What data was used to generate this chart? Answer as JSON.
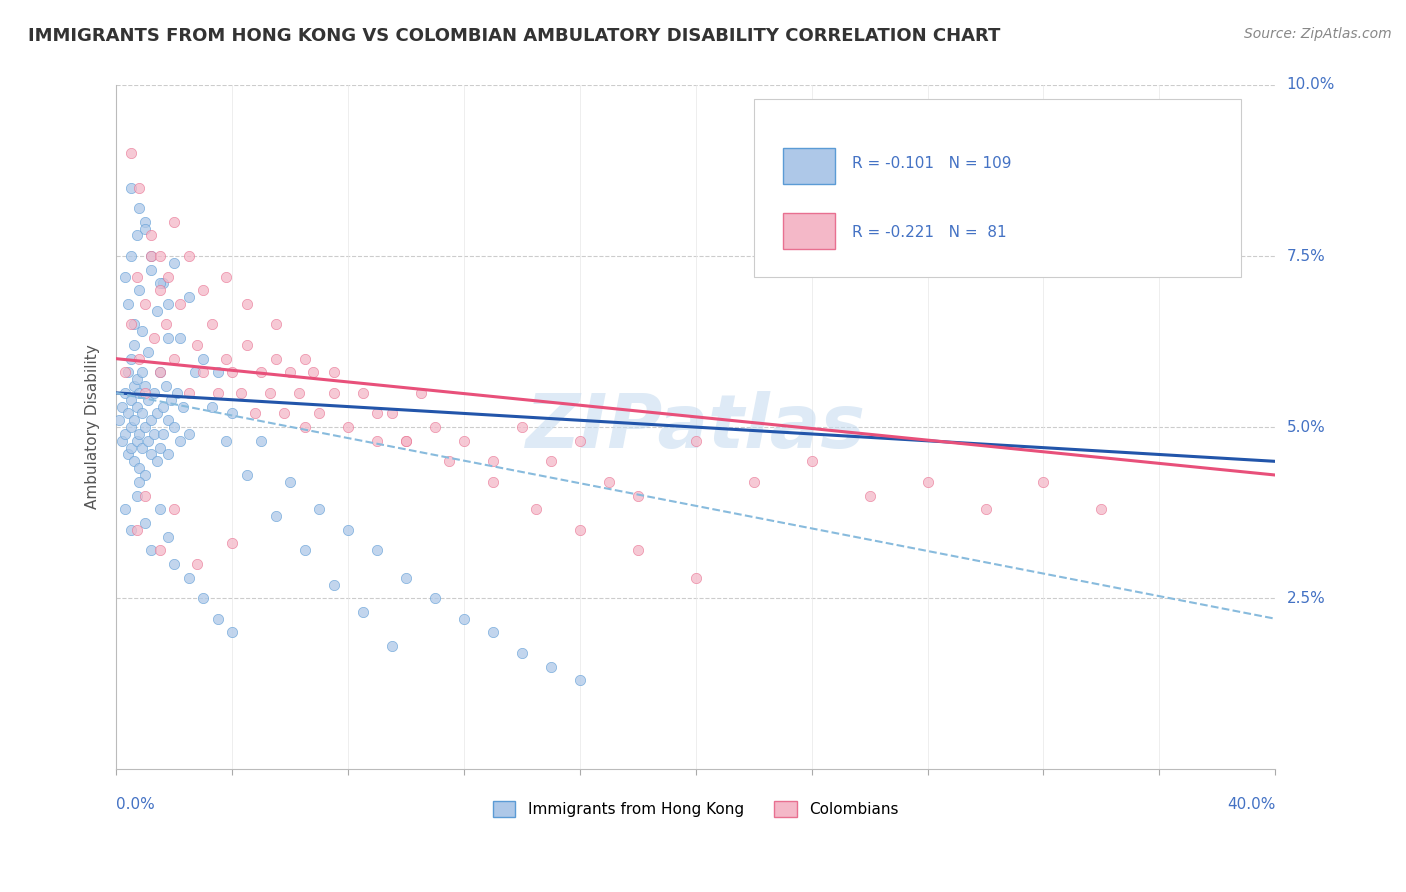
{
  "title": "IMMIGRANTS FROM HONG KONG VS COLOMBIAN AMBULATORY DISABILITY CORRELATION CHART",
  "source": "Source: ZipAtlas.com",
  "ylabel_label": "Ambulatory Disability",
  "xmin": 0.0,
  "xmax": 0.4,
  "ymin": 0.0,
  "ymax": 0.1,
  "color_blue": "#aec8e8",
  "color_blue_edge": "#5b9bd5",
  "color_pink": "#f4b8c8",
  "color_pink_edge": "#e87090",
  "color_trend_blue": "#2255aa",
  "color_trend_pink": "#e8507a",
  "color_dashed": "#88bbdd",
  "watermark_color": "#c8ddf0",
  "bg_color": "#ffffff",
  "grid_color": "#cccccc",
  "title_color": "#333333",
  "axis_label_color": "#4472c4",
  "blue_trend_start_y": 0.055,
  "blue_trend_end_y": 0.045,
  "pink_trend_start_y": 0.06,
  "pink_trend_end_y": 0.043,
  "dashed_trend_start_y": 0.055,
  "dashed_trend_end_y": 0.022,
  "blue_points_x": [
    0.001,
    0.002,
    0.002,
    0.003,
    0.003,
    0.004,
    0.004,
    0.004,
    0.005,
    0.005,
    0.005,
    0.005,
    0.006,
    0.006,
    0.006,
    0.006,
    0.007,
    0.007,
    0.007,
    0.008,
    0.008,
    0.008,
    0.009,
    0.009,
    0.009,
    0.01,
    0.01,
    0.01,
    0.011,
    0.011,
    0.011,
    0.012,
    0.012,
    0.013,
    0.013,
    0.014,
    0.014,
    0.015,
    0.015,
    0.016,
    0.016,
    0.017,
    0.018,
    0.018,
    0.019,
    0.02,
    0.021,
    0.022,
    0.023,
    0.025,
    0.003,
    0.004,
    0.005,
    0.006,
    0.007,
    0.008,
    0.009,
    0.01,
    0.012,
    0.014,
    0.016,
    0.018,
    0.02,
    0.025,
    0.03,
    0.035,
    0.04,
    0.05,
    0.06,
    0.07,
    0.08,
    0.09,
    0.1,
    0.11,
    0.12,
    0.13,
    0.14,
    0.15,
    0.16,
    0.003,
    0.005,
    0.007,
    0.008,
    0.01,
    0.012,
    0.015,
    0.018,
    0.02,
    0.025,
    0.03,
    0.035,
    0.04,
    0.005,
    0.008,
    0.01,
    0.012,
    0.015,
    0.018,
    0.022,
    0.027,
    0.033,
    0.038,
    0.045,
    0.055,
    0.065,
    0.075,
    0.085,
    0.095
  ],
  "blue_points_y": [
    0.051,
    0.053,
    0.048,
    0.049,
    0.055,
    0.052,
    0.046,
    0.058,
    0.05,
    0.054,
    0.047,
    0.06,
    0.051,
    0.056,
    0.045,
    0.062,
    0.053,
    0.048,
    0.057,
    0.049,
    0.055,
    0.044,
    0.052,
    0.058,
    0.047,
    0.05,
    0.056,
    0.043,
    0.054,
    0.048,
    0.061,
    0.051,
    0.046,
    0.055,
    0.049,
    0.052,
    0.045,
    0.058,
    0.047,
    0.053,
    0.049,
    0.056,
    0.051,
    0.046,
    0.054,
    0.05,
    0.055,
    0.048,
    0.053,
    0.049,
    0.072,
    0.068,
    0.075,
    0.065,
    0.078,
    0.07,
    0.064,
    0.08,
    0.073,
    0.067,
    0.071,
    0.063,
    0.074,
    0.069,
    0.06,
    0.058,
    0.052,
    0.048,
    0.042,
    0.038,
    0.035,
    0.032,
    0.028,
    0.025,
    0.022,
    0.02,
    0.017,
    0.015,
    0.013,
    0.038,
    0.035,
    0.04,
    0.042,
    0.036,
    0.032,
    0.038,
    0.034,
    0.03,
    0.028,
    0.025,
    0.022,
    0.02,
    0.085,
    0.082,
    0.079,
    0.075,
    0.071,
    0.068,
    0.063,
    0.058,
    0.053,
    0.048,
    0.043,
    0.037,
    0.032,
    0.027,
    0.023,
    0.018
  ],
  "pink_points_x": [
    0.003,
    0.005,
    0.007,
    0.008,
    0.01,
    0.01,
    0.012,
    0.013,
    0.015,
    0.015,
    0.017,
    0.018,
    0.02,
    0.022,
    0.025,
    0.028,
    0.03,
    0.033,
    0.035,
    0.038,
    0.04,
    0.043,
    0.045,
    0.048,
    0.05,
    0.053,
    0.055,
    0.058,
    0.06,
    0.063,
    0.065,
    0.068,
    0.07,
    0.075,
    0.08,
    0.085,
    0.09,
    0.095,
    0.1,
    0.105,
    0.11,
    0.12,
    0.13,
    0.14,
    0.15,
    0.16,
    0.17,
    0.18,
    0.2,
    0.22,
    0.24,
    0.26,
    0.28,
    0.3,
    0.32,
    0.34,
    0.005,
    0.008,
    0.012,
    0.015,
    0.02,
    0.025,
    0.03,
    0.038,
    0.045,
    0.055,
    0.065,
    0.075,
    0.09,
    0.1,
    0.115,
    0.13,
    0.145,
    0.16,
    0.18,
    0.2,
    0.007,
    0.01,
    0.015,
    0.02,
    0.028,
    0.04
  ],
  "pink_points_y": [
    0.058,
    0.065,
    0.072,
    0.06,
    0.068,
    0.055,
    0.075,
    0.063,
    0.07,
    0.058,
    0.065,
    0.072,
    0.06,
    0.068,
    0.055,
    0.062,
    0.058,
    0.065,
    0.055,
    0.06,
    0.058,
    0.055,
    0.062,
    0.052,
    0.058,
    0.055,
    0.06,
    0.052,
    0.058,
    0.055,
    0.05,
    0.058,
    0.052,
    0.055,
    0.05,
    0.055,
    0.048,
    0.052,
    0.048,
    0.055,
    0.05,
    0.048,
    0.045,
    0.05,
    0.045,
    0.048,
    0.042,
    0.04,
    0.048,
    0.042,
    0.045,
    0.04,
    0.042,
    0.038,
    0.042,
    0.038,
    0.09,
    0.085,
    0.078,
    0.075,
    0.08,
    0.075,
    0.07,
    0.072,
    0.068,
    0.065,
    0.06,
    0.058,
    0.052,
    0.048,
    0.045,
    0.042,
    0.038,
    0.035,
    0.032,
    0.028,
    0.035,
    0.04,
    0.032,
    0.038,
    0.03,
    0.033
  ]
}
